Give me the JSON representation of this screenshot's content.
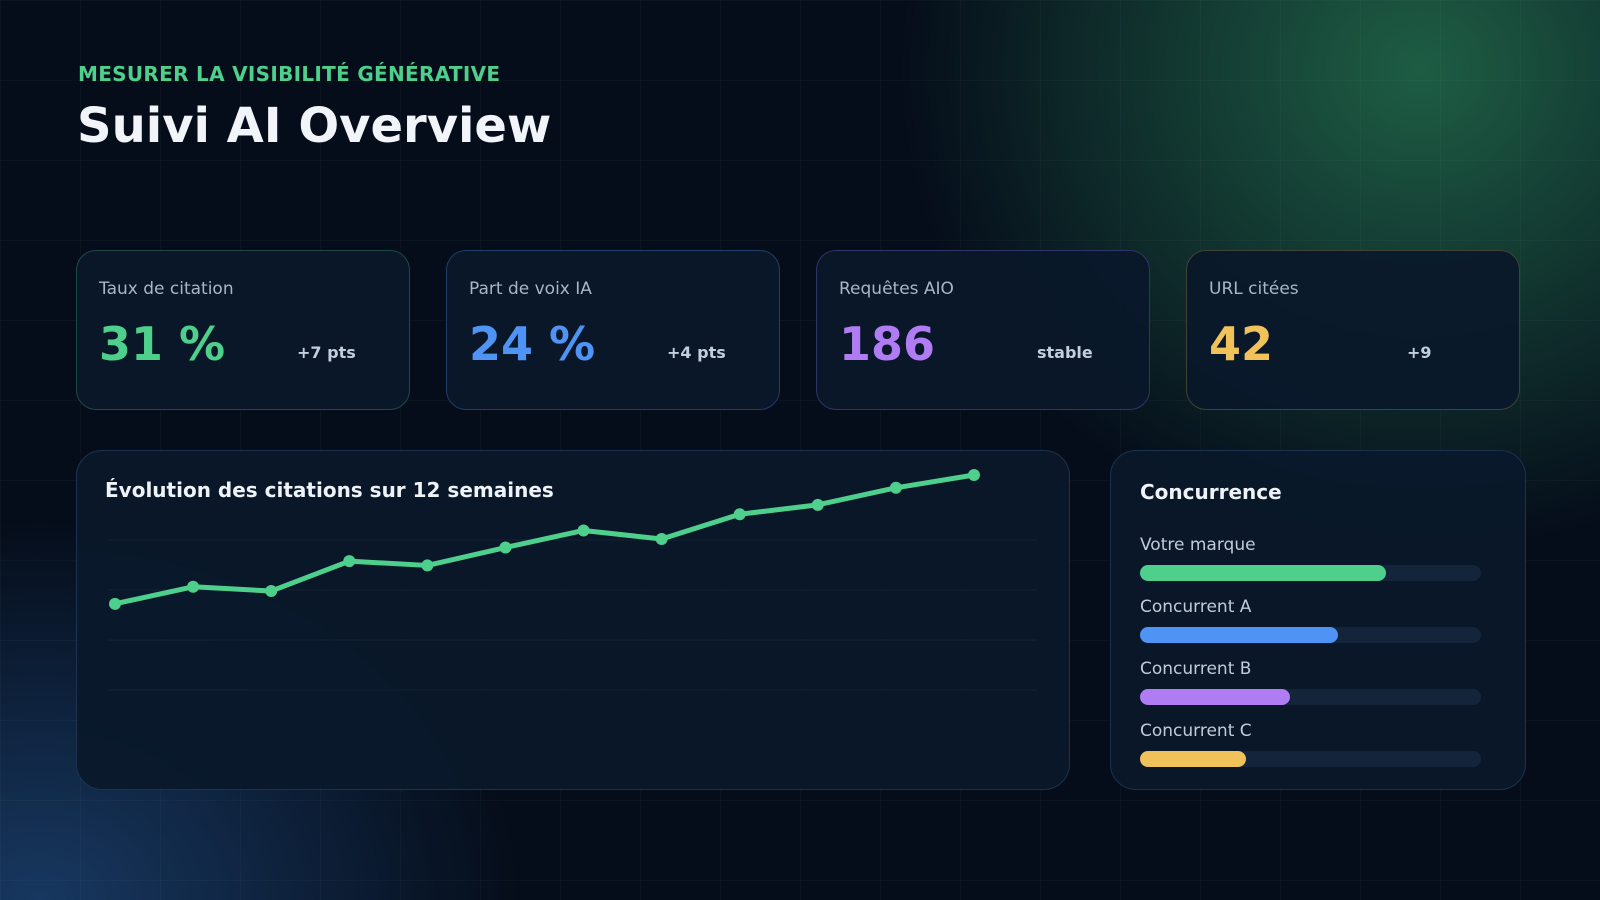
{
  "header": {
    "eyebrow": "MESURER LA VISIBILITÉ GÉNÉRATIVE",
    "title": "Suivi AI Overview"
  },
  "kpis": [
    {
      "label": "Taux de citation",
      "value": "31 %",
      "delta": "+7 pts",
      "color": "#4ecf8c"
    },
    {
      "label": "Part de voix IA",
      "value": "24 %",
      "delta": "+4 pts",
      "color": "#4f94f5"
    },
    {
      "label": "Requêtes AIO",
      "value": "186",
      "delta": "stable",
      "color": "#b07cf3"
    },
    {
      "label": "URL citées",
      "value": "42",
      "delta": "+9",
      "color": "#f1c25a"
    }
  ],
  "chart_data": {
    "type": "line",
    "title": "Évolution des citations sur 12 semaines",
    "x": [
      1,
      2,
      3,
      4,
      5,
      6,
      7,
      8,
      9,
      10,
      11,
      12
    ],
    "series": [
      {
        "values": [
          0.0,
          0.2,
          0.15,
          0.5,
          0.45,
          0.66,
          0.86,
          0.76,
          1.05,
          1.16,
          1.36,
          1.51
        ],
        "color": "#4ecf8c"
      }
    ],
    "ylim": [
      -1.01,
      1.51
    ],
    "grid": true,
    "legend": "none"
  },
  "competition": {
    "title": "Concurrence",
    "items": [
      {
        "label": "Votre marque",
        "share": 0.72,
        "color": "#4ecf8c"
      },
      {
        "label": "Concurrent A",
        "share": 0.58,
        "color": "#4f94f5"
      },
      {
        "label": "Concurrent B",
        "share": 0.44,
        "color": "#b07cf3"
      },
      {
        "label": "Concurrent C",
        "share": 0.31,
        "color": "#f1c25a"
      }
    ]
  }
}
